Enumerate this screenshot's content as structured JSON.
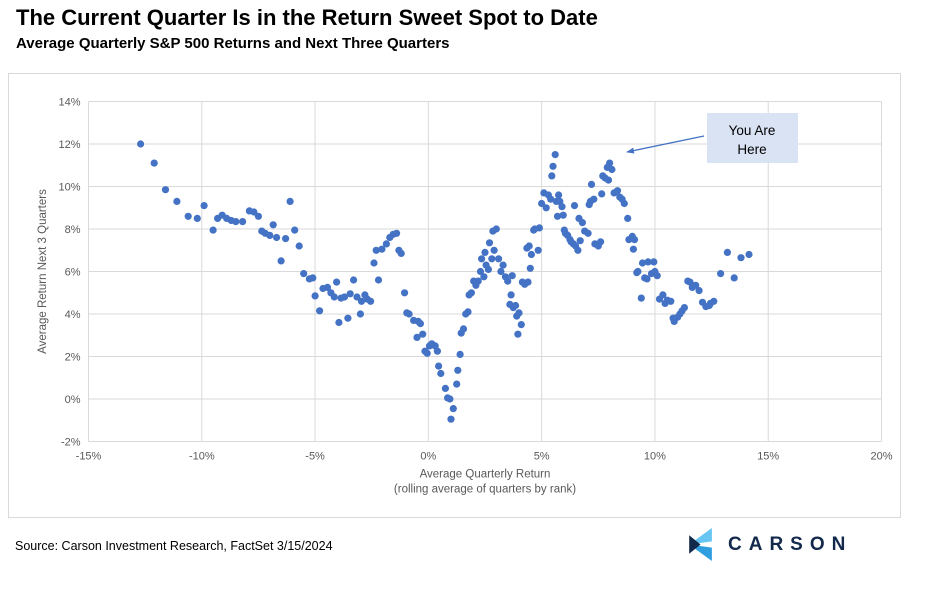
{
  "title": "The Current Quarter Is in the Return Sweet Spot to Date",
  "subtitle": "Average Quarterly S&P 500 Returns and Next Three Quarters",
  "source": "Source: Carson Investment Research, FactSet 3/15/2024",
  "logo": {
    "text": "CARSON",
    "navy": "#13294b",
    "light_blue": "#66c5f2",
    "mid_blue": "#2f9fe0"
  },
  "annotation": {
    "lines": [
      "You Are",
      "Here"
    ],
    "box_fill": "#dae3f3",
    "arrow_color": "#4472c4"
  },
  "chart_data": {
    "type": "scatter",
    "title": "The Current Quarter Is in the Return Sweet Spot to Date",
    "subtitle": "Average Quarterly S&P 500 Returns and Next Three Quarters",
    "xlabel": "Average Quarterly Return",
    "xlabel_note": "(rolling average of quarters by rank)",
    "ylabel": "Average Return Next 3 Quarters",
    "xlim": [
      -15,
      20
    ],
    "ylim": [
      -2,
      14
    ],
    "x_tick_values": [
      -15,
      -10,
      -5,
      0,
      5,
      10,
      15,
      20
    ],
    "x_tick_labels": [
      "-15%",
      "-10%",
      "-5%",
      "0%",
      "5%",
      "10%",
      "15%",
      "20%"
    ],
    "y_tick_values": [
      -2,
      0,
      2,
      4,
      6,
      8,
      10,
      12,
      14
    ],
    "y_tick_labels": [
      "-2%",
      "0%",
      "2%",
      "4%",
      "6%",
      "8%",
      "10%",
      "12%",
      "14%"
    ],
    "grid": true,
    "grid_color": "#d9d9d9",
    "point_color": "#4472c4",
    "legend": "none",
    "points": [
      [
        -12.7,
        12.0
      ],
      [
        -12.1,
        11.1
      ],
      [
        -11.6,
        9.85
      ],
      [
        -11.1,
        9.3
      ],
      [
        -10.6,
        8.6
      ],
      [
        -10.2,
        8.5
      ],
      [
        -9.9,
        9.1
      ],
      [
        -9.5,
        7.95
      ],
      [
        -9.3,
        8.5
      ],
      [
        -9.1,
        8.65
      ],
      [
        -8.9,
        8.5
      ],
      [
        -8.7,
        8.4
      ],
      [
        -8.5,
        8.35
      ],
      [
        -8.2,
        8.35
      ],
      [
        -7.9,
        8.85
      ],
      [
        -7.7,
        8.8
      ],
      [
        -7.5,
        8.6
      ],
      [
        -7.35,
        7.9
      ],
      [
        -7.2,
        7.8
      ],
      [
        -7.0,
        7.7
      ],
      [
        -6.85,
        8.2
      ],
      [
        -6.7,
        7.6
      ],
      [
        -6.5,
        6.5
      ],
      [
        -6.3,
        7.55
      ],
      [
        -6.1,
        9.3
      ],
      [
        -5.9,
        7.95
      ],
      [
        -5.7,
        7.2
      ],
      [
        -5.5,
        5.9
      ],
      [
        -5.25,
        5.65
      ],
      [
        -5.1,
        5.7
      ],
      [
        -5.0,
        4.85
      ],
      [
        -4.8,
        4.15
      ],
      [
        -4.65,
        5.2
      ],
      [
        -4.45,
        5.25
      ],
      [
        -4.3,
        5.0
      ],
      [
        -4.15,
        4.8
      ],
      [
        -4.05,
        5.5
      ],
      [
        -3.95,
        3.6
      ],
      [
        -3.85,
        4.75
      ],
      [
        -3.7,
        4.8
      ],
      [
        -3.55,
        3.8
      ],
      [
        -3.45,
        4.95
      ],
      [
        -3.3,
        5.6
      ],
      [
        -3.15,
        4.8
      ],
      [
        -3.0,
        4.0
      ],
      [
        -2.95,
        4.6
      ],
      [
        -2.8,
        4.9
      ],
      [
        -2.7,
        4.7
      ],
      [
        -2.55,
        4.6
      ],
      [
        -2.4,
        6.4
      ],
      [
        -2.3,
        7.0
      ],
      [
        -2.2,
        5.6
      ],
      [
        -2.05,
        7.05
      ],
      [
        -1.85,
        7.3
      ],
      [
        -1.7,
        7.6
      ],
      [
        -1.55,
        7.75
      ],
      [
        -1.4,
        7.8
      ],
      [
        -1.3,
        7.0
      ],
      [
        -1.2,
        6.85
      ],
      [
        -1.05,
        5.0
      ],
      [
        -0.95,
        4.05
      ],
      [
        -0.85,
        4.0
      ],
      [
        -0.65,
        3.7
      ],
      [
        -0.5,
        2.9
      ],
      [
        -0.45,
        3.65
      ],
      [
        -0.35,
        3.55
      ],
      [
        -0.25,
        3.05
      ],
      [
        -0.15,
        2.25
      ],
      [
        -0.05,
        2.15
      ],
      [
        0.05,
        2.5
      ],
      [
        0.15,
        2.6
      ],
      [
        0.3,
        2.5
      ],
      [
        0.4,
        2.25
      ],
      [
        0.45,
        1.55
      ],
      [
        0.55,
        1.2
      ],
      [
        0.75,
        0.5
      ],
      [
        0.85,
        0.05
      ],
      [
        0.95,
        0.0
      ],
      [
        1.0,
        -0.95
      ],
      [
        1.1,
        -0.45
      ],
      [
        1.25,
        0.7
      ],
      [
        1.3,
        1.35
      ],
      [
        1.4,
        2.1
      ],
      [
        1.45,
        3.1
      ],
      [
        1.55,
        3.3
      ],
      [
        1.65,
        4.0
      ],
      [
        1.75,
        4.1
      ],
      [
        1.8,
        4.9
      ],
      [
        1.9,
        5.0
      ],
      [
        2.0,
        5.55
      ],
      [
        2.1,
        5.35
      ],
      [
        2.2,
        5.55
      ],
      [
        2.3,
        6.0
      ],
      [
        2.35,
        6.6
      ],
      [
        2.45,
        5.75
      ],
      [
        2.5,
        6.9
      ],
      [
        2.55,
        6.3
      ],
      [
        2.65,
        6.1
      ],
      [
        2.7,
        7.35
      ],
      [
        2.8,
        6.6
      ],
      [
        2.85,
        7.9
      ],
      [
        2.9,
        7.0
      ],
      [
        3.0,
        8.0
      ],
      [
        3.1,
        6.6
      ],
      [
        3.2,
        6.0
      ],
      [
        3.3,
        6.3
      ],
      [
        3.4,
        5.75
      ],
      [
        3.5,
        5.55
      ],
      [
        3.6,
        4.45
      ],
      [
        3.65,
        4.9
      ],
      [
        3.7,
        5.8
      ],
      [
        3.75,
        4.3
      ],
      [
        3.85,
        4.4
      ],
      [
        3.9,
        3.9
      ],
      [
        3.95,
        3.05
      ],
      [
        4.0,
        4.05
      ],
      [
        4.1,
        3.5
      ],
      [
        4.15,
        5.5
      ],
      [
        4.25,
        5.4
      ],
      [
        4.35,
        7.1
      ],
      [
        4.4,
        5.5
      ],
      [
        4.45,
        7.2
      ],
      [
        4.5,
        6.15
      ],
      [
        4.55,
        6.8
      ],
      [
        4.65,
        7.95
      ],
      [
        4.7,
        8.0
      ],
      [
        4.85,
        7.0
      ],
      [
        4.9,
        8.05
      ],
      [
        5.0,
        9.2
      ],
      [
        5.1,
        9.7
      ],
      [
        5.2,
        9.0
      ],
      [
        5.3,
        9.6
      ],
      [
        5.4,
        9.4
      ],
      [
        5.45,
        10.5
      ],
      [
        5.5,
        10.95
      ],
      [
        5.6,
        11.5
      ],
      [
        5.65,
        9.3
      ],
      [
        5.7,
        8.6
      ],
      [
        5.75,
        9.6
      ],
      [
        5.8,
        9.3
      ],
      [
        5.9,
        9.05
      ],
      [
        5.95,
        8.65
      ],
      [
        6.0,
        7.95
      ],
      [
        6.05,
        7.8
      ],
      [
        6.15,
        7.7
      ],
      [
        6.25,
        7.5
      ],
      [
        6.3,
        7.4
      ],
      [
        6.4,
        7.3
      ],
      [
        6.45,
        9.1
      ],
      [
        6.5,
        7.2
      ],
      [
        6.6,
        7.0
      ],
      [
        6.65,
        8.5
      ],
      [
        6.7,
        7.45
      ],
      [
        6.8,
        8.3
      ],
      [
        6.9,
        7.9
      ],
      [
        7.05,
        7.8
      ],
      [
        7.1,
        9.15
      ],
      [
        7.15,
        9.3
      ],
      [
        7.2,
        10.1
      ],
      [
        7.3,
        9.4
      ],
      [
        7.35,
        7.3
      ],
      [
        7.5,
        7.2
      ],
      [
        7.6,
        7.4
      ],
      [
        7.65,
        9.65
      ],
      [
        7.7,
        10.5
      ],
      [
        7.8,
        10.4
      ],
      [
        7.9,
        10.9
      ],
      [
        7.95,
        10.3
      ],
      [
        8.0,
        11.1
      ],
      [
        8.1,
        10.8
      ],
      [
        8.2,
        9.7
      ],
      [
        8.35,
        9.8
      ],
      [
        8.45,
        9.5
      ],
      [
        8.55,
        9.4
      ],
      [
        8.65,
        9.2
      ],
      [
        8.8,
        8.5
      ],
      [
        8.85,
        7.5
      ],
      [
        9.0,
        7.65
      ],
      [
        9.05,
        7.05
      ],
      [
        9.1,
        7.5
      ],
      [
        9.2,
        5.95
      ],
      [
        9.25,
        6.0
      ],
      [
        9.4,
        4.75
      ],
      [
        9.45,
        6.4
      ],
      [
        9.55,
        5.7
      ],
      [
        9.65,
        5.65
      ],
      [
        9.7,
        6.45
      ],
      [
        9.85,
        5.9
      ],
      [
        9.95,
        6.45
      ],
      [
        10.0,
        6.0
      ],
      [
        10.1,
        5.8
      ],
      [
        10.2,
        4.7
      ],
      [
        10.35,
        4.9
      ],
      [
        10.45,
        4.5
      ],
      [
        10.55,
        4.65
      ],
      [
        10.7,
        4.6
      ],
      [
        10.8,
        3.8
      ],
      [
        10.85,
        3.65
      ],
      [
        11.0,
        3.85
      ],
      [
        11.1,
        4.0
      ],
      [
        11.2,
        4.15
      ],
      [
        11.3,
        4.3
      ],
      [
        11.45,
        5.55
      ],
      [
        11.55,
        5.5
      ],
      [
        11.65,
        5.25
      ],
      [
        11.8,
        5.35
      ],
      [
        11.95,
        5.1
      ],
      [
        12.1,
        4.55
      ],
      [
        12.25,
        4.35
      ],
      [
        12.4,
        4.4
      ],
      [
        12.45,
        4.5
      ],
      [
        12.6,
        4.6
      ],
      [
        12.9,
        5.9
      ],
      [
        13.2,
        6.9
      ],
      [
        13.5,
        5.7
      ],
      [
        13.8,
        6.65
      ],
      [
        14.15,
        6.8
      ]
    ]
  }
}
